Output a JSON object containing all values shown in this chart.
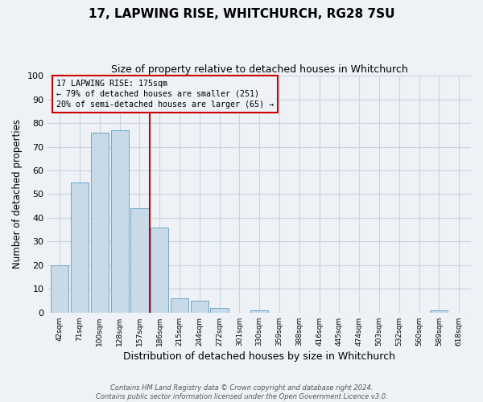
{
  "title": "17, LAPWING RISE, WHITCHURCH, RG28 7SU",
  "subtitle": "Size of property relative to detached houses in Whitchurch",
  "xlabel": "Distribution of detached houses by size in Whitchurch",
  "ylabel": "Number of detached properties",
  "bin_labels": [
    "42sqm",
    "71sqm",
    "100sqm",
    "128sqm",
    "157sqm",
    "186sqm",
    "215sqm",
    "244sqm",
    "272sqm",
    "301sqm",
    "330sqm",
    "359sqm",
    "388sqm",
    "416sqm",
    "445sqm",
    "474sqm",
    "503sqm",
    "532sqm",
    "560sqm",
    "589sqm",
    "618sqm"
  ],
  "bar_heights": [
    20,
    55,
    76,
    77,
    44,
    36,
    6,
    5,
    2,
    0,
    1,
    0,
    0,
    0,
    0,
    0,
    0,
    0,
    0,
    1,
    0
  ],
  "bar_color": "#c8d9e8",
  "bar_edge_color": "#6fa8c8",
  "vline_color": "#cc0000",
  "annotation_title": "17 LAPWING RISE: 175sqm",
  "annotation_line1": "← 79% of detached houses are smaller (251)",
  "annotation_line2": "20% of semi-detached houses are larger (65) →",
  "annotation_box_color": "#cc0000",
  "ylim": [
    0,
    100
  ],
  "yticks": [
    0,
    10,
    20,
    30,
    40,
    50,
    60,
    70,
    80,
    90,
    100
  ],
  "grid_color": "#c8d4de",
  "bg_color": "#eef2f6",
  "footer_line1": "Contains HM Land Registry data © Crown copyright and database right 2024.",
  "footer_line2": "Contains public sector information licensed under the Open Government Licence v3.0."
}
